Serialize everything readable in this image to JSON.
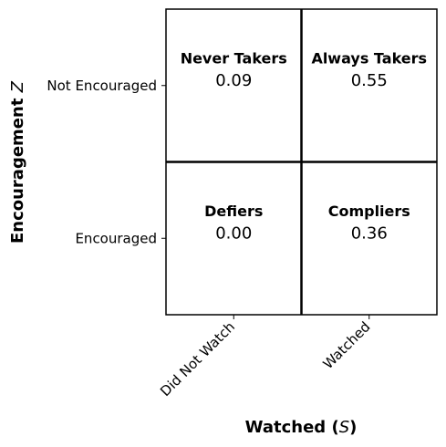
{
  "chart_data": {
    "type": "table",
    "title": "",
    "xlabel": "Watched (",
    "xlabel_symbol": "S",
    "xlabel_suffix": ")",
    "ylabel": "Encouragement ",
    "ylabel_symbol": "Z",
    "x_categories": [
      "Did Not Watch",
      "Watched"
    ],
    "y_categories": [
      "Not Encouraged",
      "Encouraged"
    ],
    "cells": [
      {
        "row": 0,
        "col": 0,
        "name": "Never Takers",
        "value": "0.09"
      },
      {
        "row": 0,
        "col": 1,
        "name": "Always Takers",
        "value": "0.55"
      },
      {
        "row": 1,
        "col": 0,
        "name": "Defiers",
        "value": "0.00"
      },
      {
        "row": 1,
        "col": 1,
        "name": "Compliers",
        "value": "0.36"
      }
    ],
    "grid": true,
    "cell_color": "#ffffff",
    "line_color": "#000000"
  }
}
